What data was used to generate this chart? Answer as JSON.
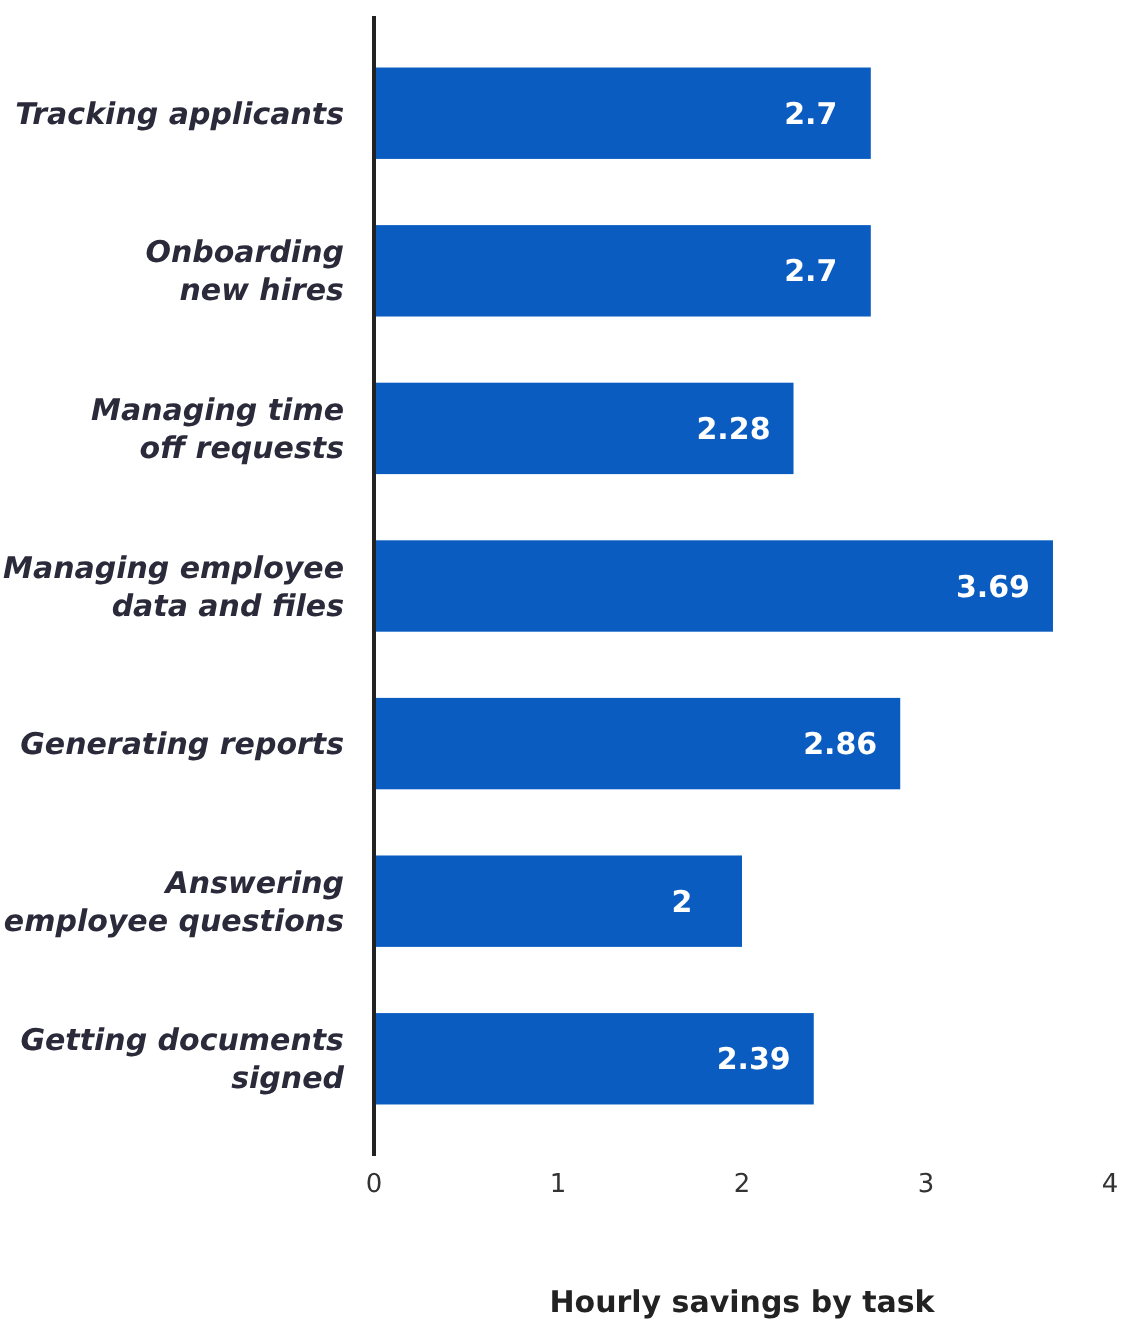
{
  "chart_data": {
    "type": "bar",
    "orientation": "horizontal",
    "xlabel": "Hourly savings by task",
    "categories": [
      "Tracking applicants",
      "Onboarding\nnew hires",
      "Managing time\noff requests",
      "Managing employee\ndata and files",
      "Generating reports",
      "Answering\nemployee questions",
      "Getting documents\nsigned"
    ],
    "values": [
      2.7,
      2.7,
      2.28,
      3.69,
      2.86,
      2,
      2.39
    ],
    "color": "#0a5cc0",
    "xlim": [
      0,
      4
    ],
    "xticks": [
      0,
      1,
      2,
      3,
      4
    ],
    "data_labels": true
  }
}
